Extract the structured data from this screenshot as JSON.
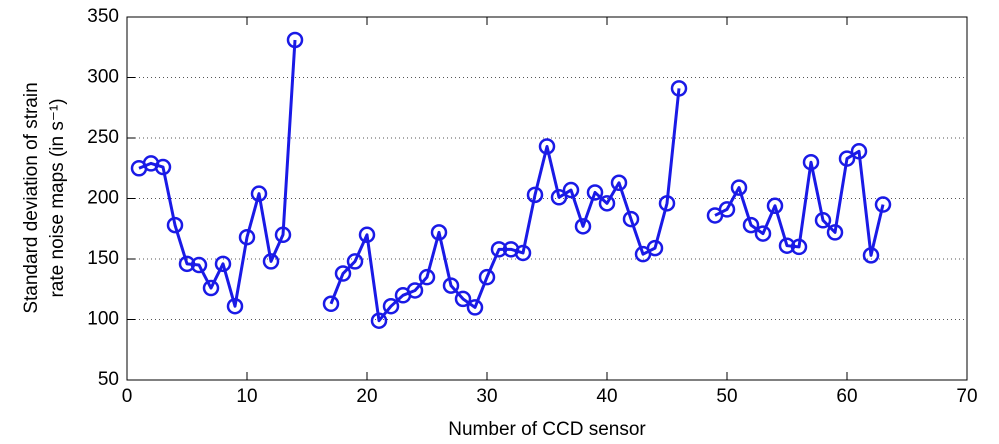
{
  "chart_data": {
    "type": "line",
    "xlabel": "Number of CCD sensor",
    "ylabel": [
      "Standard deviation of strain",
      "rate noise maps (in s⁻¹)"
    ],
    "x": [
      1,
      2,
      3,
      4,
      5,
      6,
      7,
      8,
      9,
      10,
      11,
      12,
      13,
      14,
      15,
      16,
      17,
      18,
      19,
      20,
      21,
      22,
      23,
      24,
      25,
      26,
      27,
      28,
      29,
      30,
      31,
      32,
      33,
      34,
      35,
      36,
      37,
      38,
      39,
      40,
      41,
      42,
      43,
      44,
      45,
      46,
      47,
      48,
      49,
      50,
      51,
      52,
      53,
      54,
      55,
      56,
      57,
      58,
      59,
      60,
      61,
      62,
      63
    ],
    "values": [
      225,
      229,
      226,
      178,
      146,
      145,
      126,
      146,
      111,
      168,
      204,
      148,
      170,
      331,
      null,
      null,
      113,
      138,
      148,
      170,
      99,
      111,
      120,
      124,
      135,
      172,
      128,
      117,
      110,
      135,
      158,
      158,
      155,
      203,
      243,
      201,
      207,
      177,
      205,
      196,
      213,
      183,
      154,
      159,
      196,
      291,
      null,
      null,
      186,
      191,
      209,
      178,
      171,
      194,
      161,
      160,
      230,
      182,
      172,
      233,
      239,
      153,
      195
    ],
    "color": "#1a1ae6",
    "xlim": [
      0,
      70
    ],
    "xticks": [
      0,
      10,
      20,
      30,
      40,
      50,
      60,
      70
    ],
    "ylim": [
      50,
      350
    ],
    "yticks": [
      50,
      100,
      150,
      200,
      250,
      300,
      350
    ],
    "grid": "y"
  }
}
